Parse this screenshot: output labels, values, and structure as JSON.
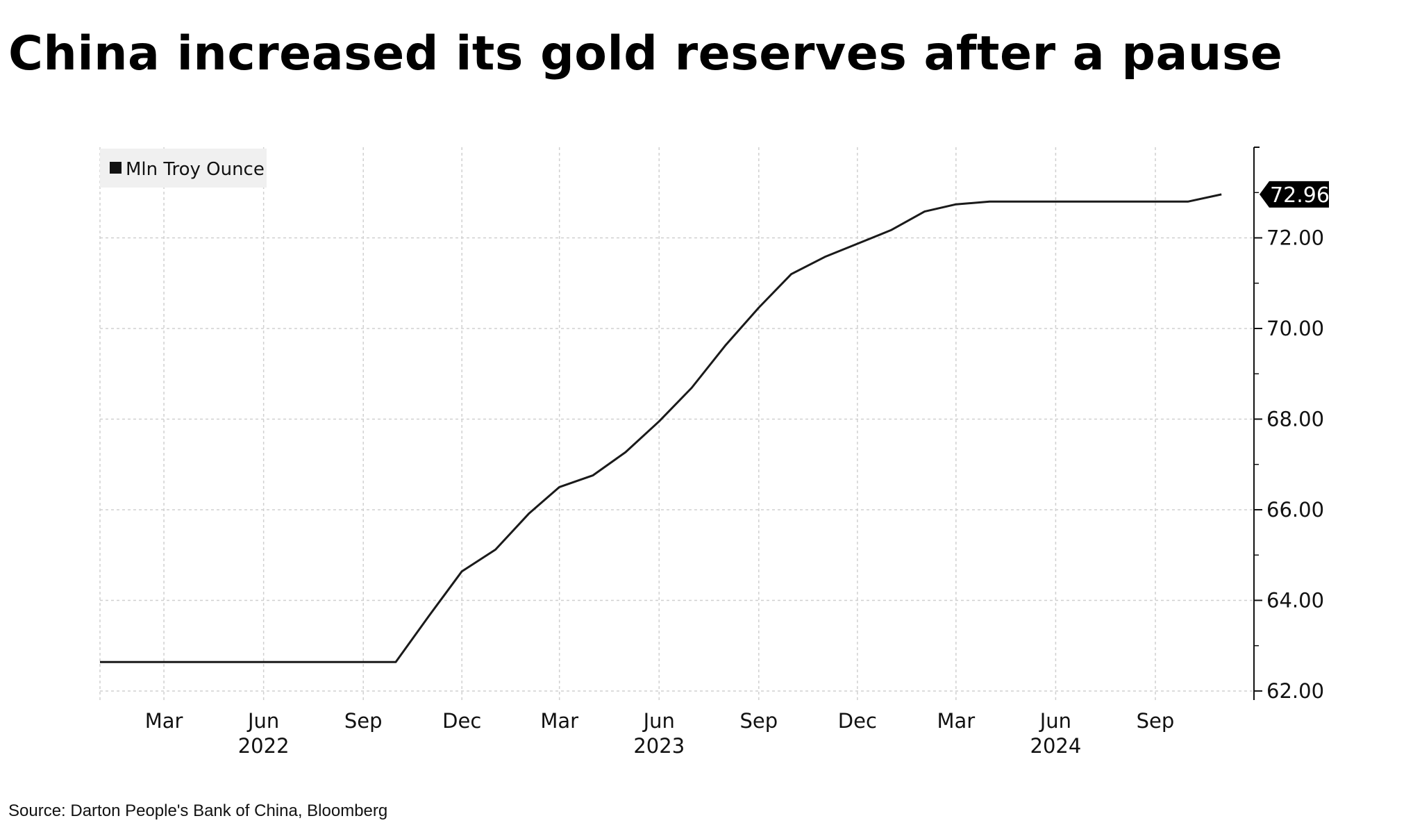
{
  "title": "China increased its gold reserves after a pause",
  "source": "Source: Darton People's Bank of China, Bloomberg",
  "chart_data": {
    "type": "line",
    "title": "China increased its gold reserves after a pause",
    "xlabel": "",
    "ylabel": "",
    "legend": {
      "position": "top-left",
      "entries": [
        "Mln Troy Ounce"
      ]
    },
    "grid": true,
    "y_axis_side": "right",
    "ylim": [
      61.8,
      74
    ],
    "yticks": [
      62,
      64,
      66,
      68,
      70,
      72
    ],
    "ytick_labels": [
      "62.00",
      "64.00",
      "66.00",
      "68.00",
      "70.00",
      "72.00"
    ],
    "xlim": [
      "2022-01-01",
      "2024-12-01"
    ],
    "xticks": [
      {
        "date": "2022-03-01",
        "label": "Mar"
      },
      {
        "date": "2022-06-01",
        "label": "Jun"
      },
      {
        "date": "2022-09-01",
        "label": "Sep"
      },
      {
        "date": "2022-12-01",
        "label": "Dec"
      },
      {
        "date": "2023-03-01",
        "label": "Mar"
      },
      {
        "date": "2023-06-01",
        "label": "Jun"
      },
      {
        "date": "2023-09-01",
        "label": "Sep"
      },
      {
        "date": "2023-12-01",
        "label": "Dec"
      },
      {
        "date": "2024-03-01",
        "label": "Mar"
      },
      {
        "date": "2024-06-01",
        "label": "Jun"
      },
      {
        "date": "2024-09-01",
        "label": "Sep"
      }
    ],
    "year_labels": [
      {
        "date": "2022-06-01",
        "label": "2022"
      },
      {
        "date": "2023-06-01",
        "label": "2023"
      },
      {
        "date": "2024-06-01",
        "label": "2024"
      }
    ],
    "last_value_label": "72.96",
    "series": [
      {
        "name": "Mln Troy Ounce",
        "color": "#1a1a1a",
        "points": [
          [
            "2022-01-01",
            62.64
          ],
          [
            "2022-02-01",
            62.64
          ],
          [
            "2022-03-01",
            62.64
          ],
          [
            "2022-04-01",
            62.64
          ],
          [
            "2022-05-01",
            62.64
          ],
          [
            "2022-06-01",
            62.64
          ],
          [
            "2022-07-01",
            62.64
          ],
          [
            "2022-08-01",
            62.64
          ],
          [
            "2022-09-01",
            62.64
          ],
          [
            "2022-10-01",
            62.64
          ],
          [
            "2022-11-01",
            63.67
          ],
          [
            "2022-12-01",
            64.64
          ],
          [
            "2023-01-01",
            65.12
          ],
          [
            "2023-02-01",
            65.92
          ],
          [
            "2023-03-01",
            66.5
          ],
          [
            "2023-04-01",
            66.76
          ],
          [
            "2023-05-01",
            67.27
          ],
          [
            "2023-06-01",
            67.95
          ],
          [
            "2023-07-01",
            68.69
          ],
          [
            "2023-08-01",
            69.62
          ],
          [
            "2023-09-01",
            70.46
          ],
          [
            "2023-10-01",
            71.2
          ],
          [
            "2023-11-01",
            71.58
          ],
          [
            "2023-12-01",
            71.87
          ],
          [
            "2024-01-01",
            72.17
          ],
          [
            "2024-02-01",
            72.58
          ],
          [
            "2024-03-01",
            72.74
          ],
          [
            "2024-04-01",
            72.8
          ],
          [
            "2024-05-01",
            72.8
          ],
          [
            "2024-06-01",
            72.8
          ],
          [
            "2024-07-01",
            72.8
          ],
          [
            "2024-08-01",
            72.8
          ],
          [
            "2024-09-01",
            72.8
          ],
          [
            "2024-10-01",
            72.8
          ],
          [
            "2024-11-01",
            72.96
          ]
        ]
      }
    ]
  }
}
